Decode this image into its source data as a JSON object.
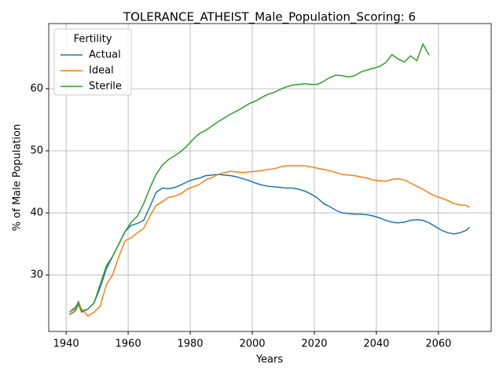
{
  "chart_data": {
    "type": "line",
    "title": "TOLERANCE_ATHEIST_Male_Population_Scoring: 6",
    "x_label": "Years",
    "y_label": "% of Male Population",
    "legend_title": "Fertility",
    "legend": "upper left",
    "grid": true,
    "x": [
      1941,
      1943,
      1944,
      1945,
      1947,
      1949,
      1951,
      1953,
      1955,
      1957,
      1959,
      1961,
      1963,
      1965,
      1967,
      1969,
      1971,
      1973,
      1975,
      1977,
      1979,
      1981,
      1983,
      1985,
      1987,
      1989,
      1991,
      1993,
      1995,
      1997,
      1999,
      2001,
      2003,
      2005,
      2007,
      2009,
      2011,
      2013,
      2015,
      2017,
      2019,
      2021,
      2023,
      2025,
      2027,
      2029,
      2031,
      2033,
      2035,
      2037,
      2039,
      2041,
      2043,
      2045,
      2047,
      2049,
      2051,
      2053,
      2055,
      2057,
      2059,
      2061,
      2063,
      2065,
      2067,
      2069,
      2070
    ],
    "series": [
      {
        "name": "Actual",
        "color": "#1f77b4",
        "values": [
          24,
          24.8,
          25.7,
          24.2,
          24.5,
          25.5,
          28,
          31,
          33,
          35,
          37,
          38,
          38.3,
          38.8,
          41,
          43.3,
          44,
          43.9,
          44.1,
          44.5,
          45,
          45.4,
          45.6,
          46,
          46.1,
          46.2,
          46.1,
          46,
          45.8,
          45.5,
          45.2,
          44.8,
          44.5,
          44.3,
          44.2,
          44.1,
          44,
          44,
          43.8,
          43.5,
          43,
          42.4,
          41.5,
          41,
          40.4,
          40,
          39.9,
          39.8,
          39.8,
          39.7,
          39.5,
          39.2,
          38.8,
          38.5,
          38.4,
          38.5,
          38.8,
          38.9,
          38.8,
          38.4,
          37.8,
          37.2,
          36.8,
          36.6,
          36.8,
          37.2,
          37.7
        ]
      },
      {
        "name": "Ideal",
        "color": "#ff7f0e",
        "values": [
          24,
          24.5,
          25.5,
          24.5,
          23.4,
          24,
          25,
          28.5,
          30,
          33,
          35.5,
          36,
          36.8,
          37.5,
          39.5,
          41.2,
          41.8,
          42.5,
          42.7,
          43.1,
          43.8,
          44.2,
          44.6,
          45.3,
          45.7,
          46.2,
          46.5,
          46.7,
          46.6,
          46.5,
          46.6,
          46.7,
          46.8,
          47,
          47.1,
          47.4,
          47.6,
          47.6,
          47.6,
          47.6,
          47.4,
          47.2,
          47,
          46.8,
          46.5,
          46.2,
          46.1,
          46,
          45.8,
          45.6,
          45.3,
          45.2,
          45.1,
          45.4,
          45.5,
          45.3,
          44.8,
          44.3,
          43.8,
          43.2,
          42.7,
          42.4,
          42,
          41.5,
          41.3,
          41.2,
          40.9
        ]
      },
      {
        "name": "Sterile",
        "color": "#2ca02c",
        "values": [
          23.6,
          24.2,
          25.3,
          24,
          24.5,
          25.5,
          28.5,
          31.5,
          33,
          35,
          37,
          38.5,
          39.5,
          41.5,
          44,
          46.2,
          47.7,
          48.6,
          49.2,
          49.9,
          50.8,
          51.9,
          52.8,
          53.3,
          54,
          54.7,
          55.3,
          55.9,
          56.4,
          57,
          57.6,
          58,
          58.6,
          59.1,
          59.4,
          59.9,
          60.3,
          60.6,
          60.7,
          60.8,
          60.7,
          60.7,
          61.2,
          61.8,
          62.2,
          62.1,
          61.9,
          62.1,
          62.7,
          63,
          63.3,
          63.6,
          64.2,
          65.5,
          64.8,
          64.3,
          65.3,
          64.5,
          67.2,
          65.4,
          null,
          null,
          null,
          null,
          null,
          null,
          null
        ]
      }
    ],
    "xlim": [
      1934.4,
      2077
    ],
    "ylim": [
      20.9,
      70.5
    ],
    "xticks": [
      1940,
      1960,
      1980,
      2000,
      2020,
      2040,
      2060
    ],
    "yticks": [
      30,
      40,
      50,
      60
    ]
  }
}
